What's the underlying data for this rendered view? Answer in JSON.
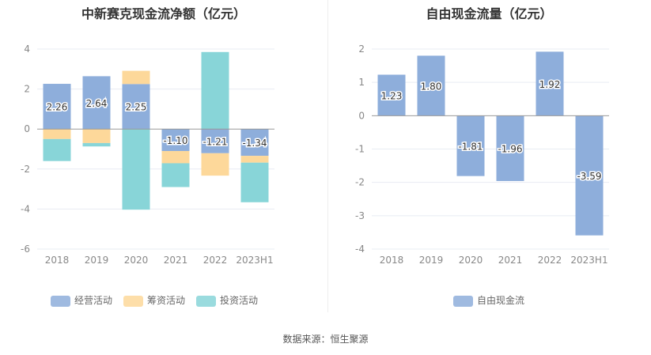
{
  "chart_data": [
    {
      "type": "bar",
      "title": "中新赛克现金流净额（亿元）",
      "stacked": true,
      "categories": [
        "2018",
        "2019",
        "2020",
        "2021",
        "2022",
        "2023H1"
      ],
      "ylim": [
        -6,
        4
      ],
      "yticks": [
        4,
        2,
        0,
        -2,
        -4,
        -6
      ],
      "grid": true,
      "legend_position": "bottom",
      "series": [
        {
          "name": "经营活动",
          "color": "#8eaedb",
          "labels": true,
          "values": [
            2.26,
            2.64,
            2.25,
            -1.1,
            -1.21,
            -1.34
          ]
        },
        {
          "name": "筹资活动",
          "color": "#fdd89a",
          "labels": false,
          "values": [
            -0.5,
            -0.7,
            0.66,
            -0.61,
            -1.12,
            -0.34
          ]
        },
        {
          "name": "投资活动",
          "color": "#88d5d8",
          "labels": false,
          "values": [
            -1.1,
            -0.17,
            -4.03,
            -1.19,
            3.85,
            -1.98
          ]
        }
      ]
    },
    {
      "type": "bar",
      "title": "自由现金流量（亿元）",
      "stacked": false,
      "categories": [
        "2018",
        "2019",
        "2020",
        "2021",
        "2022",
        "2023H1"
      ],
      "ylim": [
        -4,
        2
      ],
      "yticks": [
        2,
        1,
        0,
        -1,
        -2,
        -3,
        -4
      ],
      "grid": true,
      "legend_position": "bottom",
      "series": [
        {
          "name": "自由现金流",
          "color": "#8eaedb",
          "labels": true,
          "values": [
            1.23,
            1.8,
            -1.81,
            -1.96,
            1.92,
            -3.59
          ]
        }
      ]
    }
  ],
  "source": "数据来源：恒生聚源"
}
